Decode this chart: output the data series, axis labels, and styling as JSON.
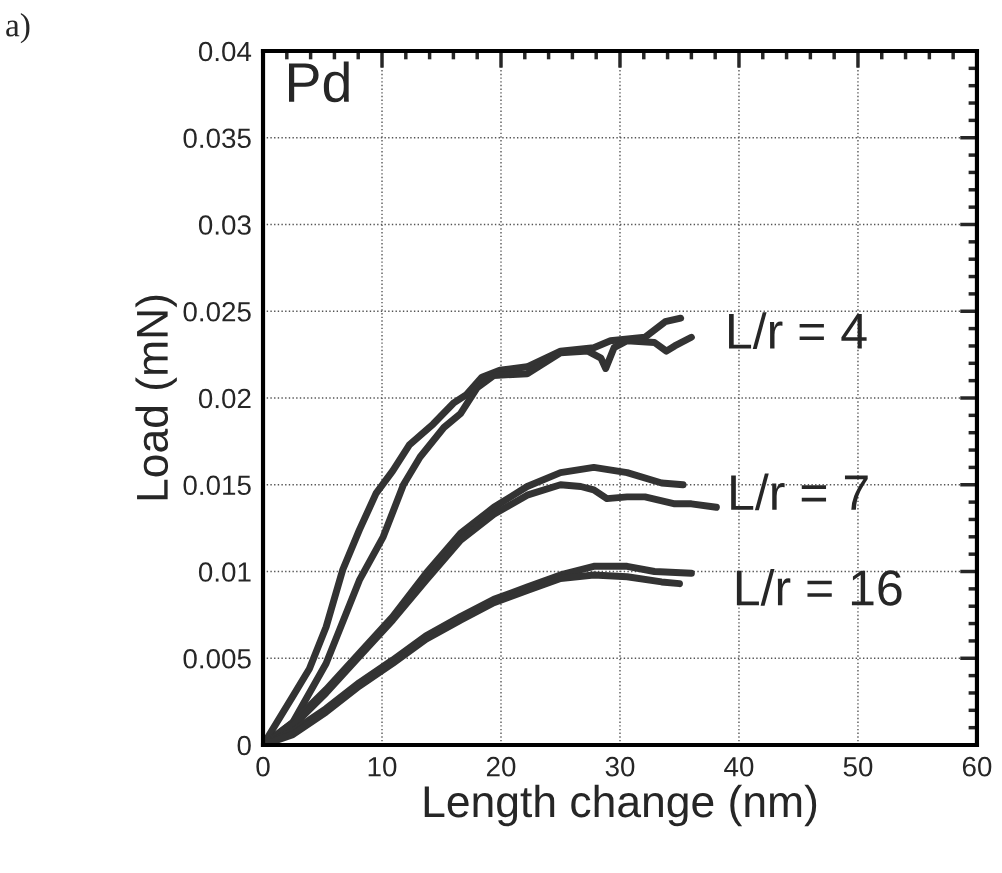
{
  "chart_data": {
    "type": "line",
    "xlabel": "Length change (nm)",
    "ylabel": "Load (mN)",
    "xlim": [
      0,
      60
    ],
    "xticks": [
      0,
      10,
      20,
      30,
      40,
      50,
      60
    ],
    "ylim": [
      0,
      0.04
    ],
    "yticks": [
      0,
      0.005,
      0.01,
      0.015,
      0.02,
      0.025,
      0.03,
      0.035,
      0.04
    ],
    "grid": true,
    "marker": "none",
    "line_style": "solid",
    "series": [
      {
        "color": "#333333",
        "x": [
          0,
          2.5,
          3.9,
          5.3,
          6.7,
          8.1,
          9.5,
          10.9,
          12.3,
          14.3,
          16.0,
          17.1,
          18.4,
          19.9,
          22.2,
          25.0,
          27.8,
          29.2,
          32.1,
          33.8,
          35.1
        ],
        "values": [
          0,
          0.0028,
          0.0044,
          0.0068,
          0.0101,
          0.0124,
          0.0145,
          0.0158,
          0.0173,
          0.0185,
          0.0197,
          0.0202,
          0.0212,
          0.0216,
          0.0218,
          0.0227,
          0.0229,
          0.0233,
          0.0235,
          0.0244,
          0.0246
        ]
      },
      {
        "color": "#333333",
        "x": [
          0,
          2.5,
          5.3,
          8.1,
          10.1,
          11.8,
          13.2,
          15.2,
          16.6,
          18.0,
          19.4,
          22.2,
          25.0,
          27.3,
          28.4,
          28.8,
          29.5,
          30.6,
          32.9,
          33.9,
          34.6,
          36.0
        ],
        "values": [
          0,
          0.0013,
          0.0047,
          0.0095,
          0.012,
          0.015,
          0.0166,
          0.0183,
          0.0191,
          0.0206,
          0.0213,
          0.0214,
          0.0226,
          0.0227,
          0.0223,
          0.0217,
          0.0229,
          0.0233,
          0.0232,
          0.0227,
          0.023,
          0.0235
        ]
      },
      {
        "color": "#333333",
        "x": [
          0,
          2.5,
          5.3,
          8.1,
          10.9,
          13.7,
          16.6,
          19.4,
          22.2,
          25.0,
          27.8,
          30.6,
          33.5,
          35.3
        ],
        "values": [
          0,
          0.0013,
          0.0032,
          0.0053,
          0.0074,
          0.0099,
          0.0122,
          0.0137,
          0.0149,
          0.0157,
          0.016,
          0.0157,
          0.0151,
          0.015
        ]
      },
      {
        "color": "#333333",
        "x": [
          0,
          2.5,
          5.3,
          8.1,
          10.9,
          13.7,
          16.6,
          19.4,
          22.2,
          25.0,
          26.7,
          27.8,
          28.9,
          30.6,
          32.1,
          34.6,
          36.0,
          38.1
        ],
        "values": [
          0,
          0.0011,
          0.003,
          0.0051,
          0.0072,
          0.0095,
          0.0118,
          0.0133,
          0.0144,
          0.015,
          0.0149,
          0.0147,
          0.0142,
          0.0143,
          0.0143,
          0.0139,
          0.0139,
          0.0137
        ]
      },
      {
        "color": "#333333",
        "x": [
          0,
          2.5,
          5.3,
          8.1,
          10.9,
          13.7,
          16.6,
          19.4,
          22.2,
          25.0,
          27.8,
          30.6,
          32.9,
          36.0
        ],
        "values": [
          0,
          0.0008,
          0.0021,
          0.0036,
          0.0049,
          0.0063,
          0.0074,
          0.0084,
          0.0091,
          0.0098,
          0.0103,
          0.0103,
          0.01,
          0.0099
        ]
      },
      {
        "color": "#333333",
        "x": [
          0,
          2.5,
          5.3,
          8.1,
          10.9,
          13.7,
          16.6,
          19.4,
          22.2,
          25.0,
          27.8,
          30.6,
          33.5,
          35.0
        ],
        "values": [
          0,
          0.0006,
          0.0019,
          0.0034,
          0.0047,
          0.0061,
          0.0072,
          0.0082,
          0.0089,
          0.0096,
          0.0098,
          0.0097,
          0.0094,
          0.0093
        ]
      }
    ],
    "annotations": [
      "a)",
      "Pd",
      "L/r = 4",
      "L/r = 7",
      "L/r = 16"
    ]
  }
}
